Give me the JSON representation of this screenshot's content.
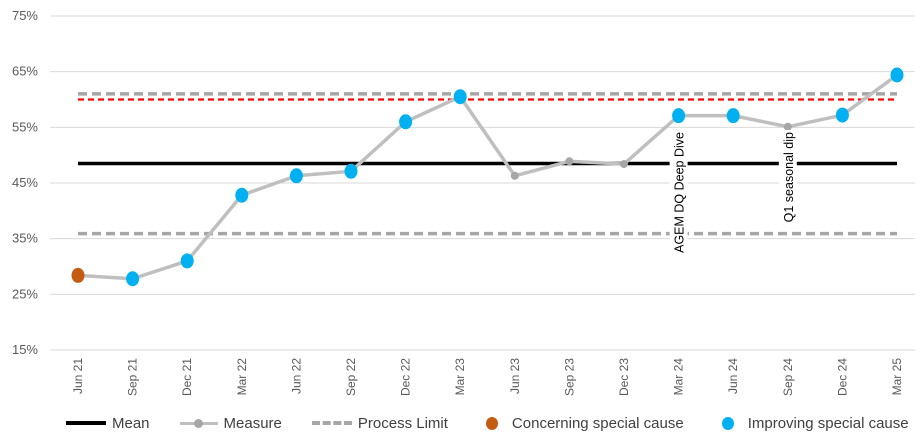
{
  "chart_data": {
    "type": "line",
    "categories": [
      "Jun 21",
      "Sep 21",
      "Dec 21",
      "Mar 22",
      "Jun 22",
      "Sep 22",
      "Dec 22",
      "Mar 23",
      "Jun 23",
      "Sep 23",
      "Dec 23",
      "Mar 24",
      "Jun 24",
      "Sep 24",
      "Dec 24",
      "Mar 25"
    ],
    "y_tick_labels": [
      "15%",
      "25%",
      "35%",
      "45%",
      "55%",
      "65%",
      "75%"
    ],
    "ylim": [
      15,
      75
    ],
    "y_unit": "%",
    "grid": "horizontal",
    "legend_position": "bottom",
    "series": [
      {
        "name": "Measure",
        "values": [
          28.4,
          27.8,
          31.0,
          42.8,
          46.3,
          47.1,
          56.0,
          60.5,
          46.3,
          48.9,
          48.4,
          57.1,
          57.1,
          55.1,
          57.2,
          64.4
        ]
      },
      {
        "name": "Mean",
        "value": 48.5
      },
      {
        "name": "Process Limit",
        "upper": 61.0,
        "lower": 35.9
      },
      {
        "name": "Target",
        "value": 60.0
      }
    ],
    "point_flags": [
      "concerning",
      "improving",
      "improving",
      "improving",
      "improving",
      "improving",
      "improving",
      "improving",
      "none",
      "none",
      "none",
      "improving",
      "improving",
      "none",
      "improving",
      "improving"
    ],
    "annotations": [
      {
        "text": "AGEM DQ Deep Dive",
        "category": "Mar 24"
      },
      {
        "text": "Q1 seasonal dip",
        "category": "Sep 24"
      }
    ],
    "colors": {
      "mean": "#000000",
      "measure_line": "#bfbfbf",
      "measure_marker": "#a6a6a6",
      "process_limit": "#a6a6a6",
      "target": "#ff0000",
      "concerning": "#c55a11",
      "improving": "#00b0f0",
      "grid": "#d9d9d9"
    }
  },
  "legend": {
    "mean": "Mean",
    "measure": "Measure",
    "process_limit": "Process Limit",
    "concerning": "Concerning special cause",
    "improving": "Improving special cause"
  }
}
